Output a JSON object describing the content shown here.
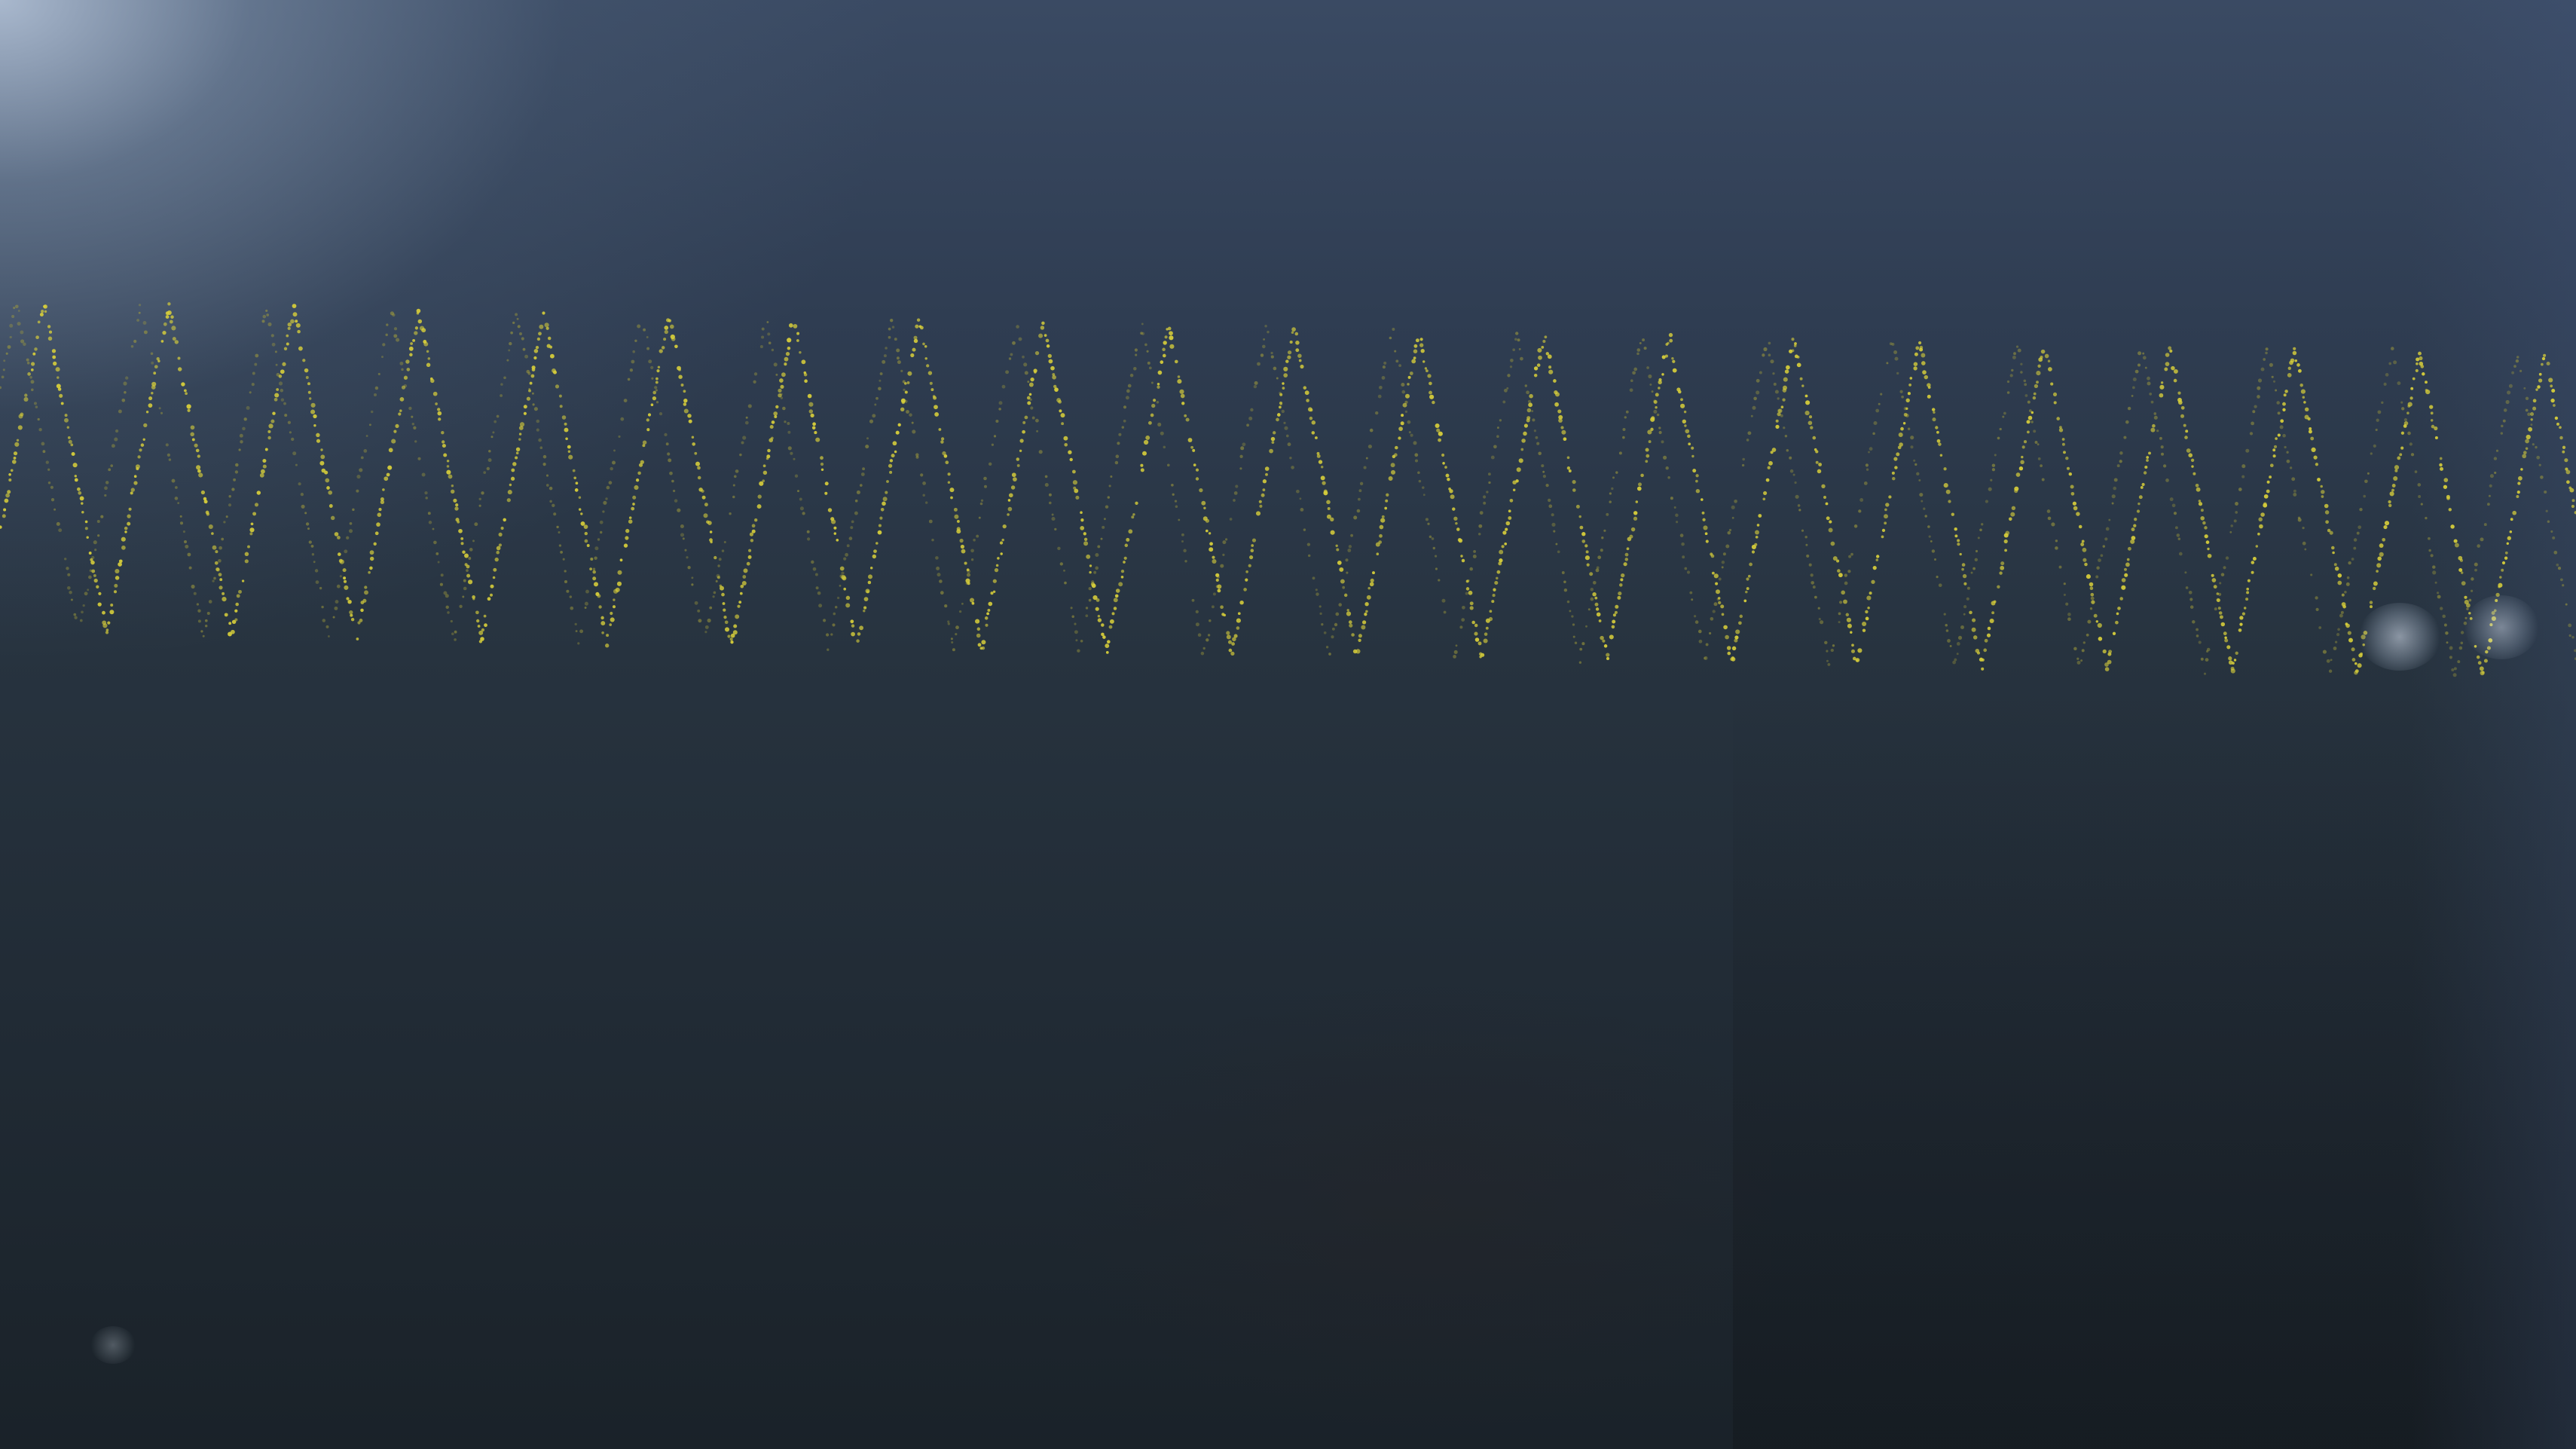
{
  "scene": {
    "subject": "oscilloscope-display-photo",
    "trace_color": "#d8cf3a",
    "trace_dim_color": "#a8a23a",
    "background_color": "#27333f",
    "glare_color": "#c8d7eb"
  },
  "waveform": {
    "shape": "triangle",
    "visible_cycles": 21,
    "ghost_trace": true
  }
}
